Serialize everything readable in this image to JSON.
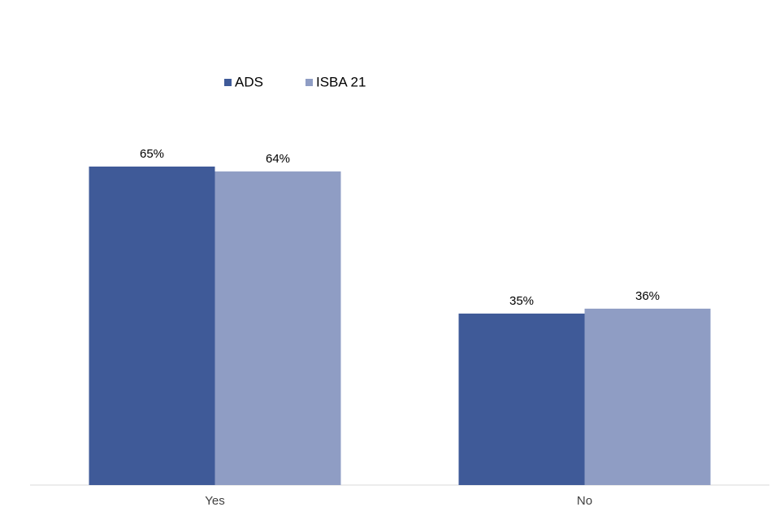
{
  "chart_data": {
    "type": "bar",
    "categories": [
      "Yes",
      "No"
    ],
    "series": [
      {
        "name": "ADS",
        "color": "#3f5a98",
        "values": [
          65,
          35
        ],
        "value_labels": [
          "65%",
          "35%"
        ]
      },
      {
        "name": "ISBA 21",
        "color": "#8f9dc4",
        "values": [
          64,
          36
        ],
        "value_labels": [
          "64%",
          "36%"
        ]
      }
    ],
    "legend": "top"
  }
}
